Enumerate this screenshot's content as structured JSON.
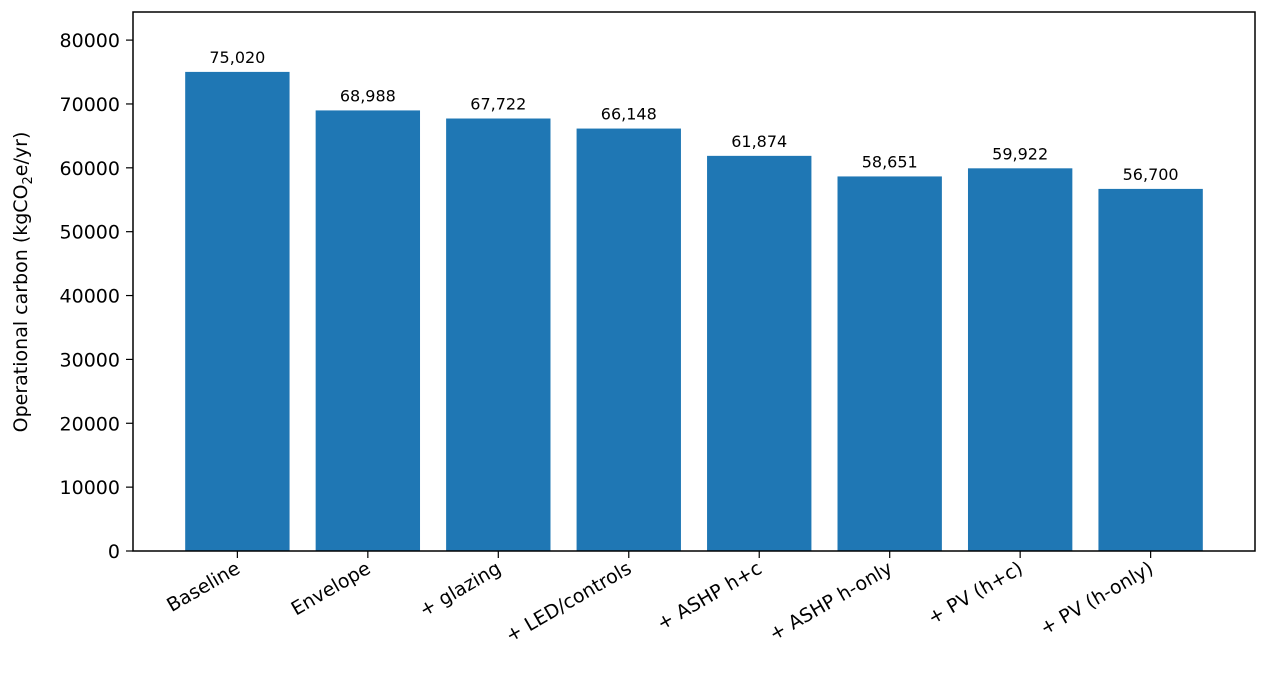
{
  "chart_data": {
    "type": "bar",
    "categories": [
      "Baseline",
      "Envelope",
      "+ glazing",
      "+ LED/controls",
      "+ ASHP h+c",
      "+ ASHP h-only",
      "+ PV (h+c)",
      "+ PV (h-only)"
    ],
    "values": [
      75020,
      68988,
      67722,
      66148,
      61874,
      58651,
      59922,
      56700
    ],
    "data_labels": [
      "75,020",
      "68,988",
      "67,722",
      "66,148",
      "61,874",
      "58,651",
      "59,922",
      "56,700"
    ],
    "title": "",
    "xlabel": "",
    "ylabel": {
      "prefix": "Operational carbon (kgCO",
      "subscript": "2",
      "suffix": "e/yr)"
    },
    "ylim": [
      0,
      84400
    ],
    "yticks": [
      0,
      10000,
      20000,
      30000,
      40000,
      50000,
      60000,
      70000,
      80000
    ],
    "bar_color": "#1f77b4",
    "grid": false,
    "legend": "none"
  }
}
